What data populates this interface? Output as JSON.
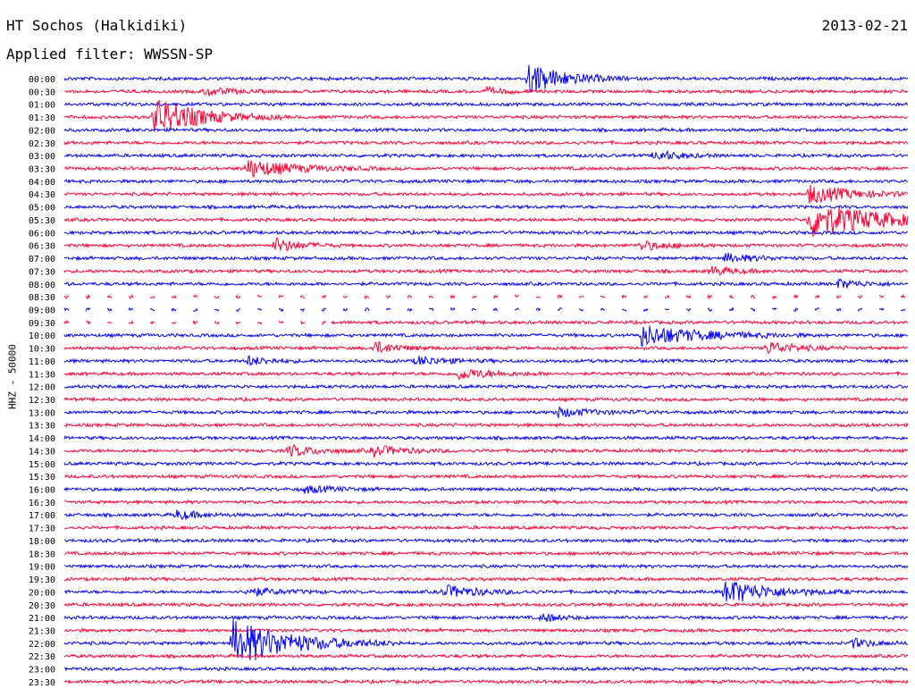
{
  "header": {
    "station": "HT Sochos (Halkidiki)",
    "date": "2013-02-21",
    "filter": "Applied filter: WWSSN-SP"
  },
  "colors": {
    "odd_trace": "#0000ff",
    "even_trace": "#ff0033",
    "text": "#000000"
  },
  "chart_data": {
    "type": "line",
    "title": "HT Sochos (Halkidiki)",
    "ylabel": "HHZ - 50000",
    "xlabel": "",
    "grid": false,
    "series_labels": [
      "00:00",
      "00:30",
      "01:00",
      "01:30",
      "02:00",
      "02:30",
      "03:00",
      "03:30",
      "04:00",
      "04:30",
      "05:00",
      "05:30",
      "06:00",
      "06:30",
      "07:00",
      "07:30",
      "08:00",
      "08:30",
      "09:00",
      "09:30",
      "10:00",
      "10:30",
      "11:00",
      "11:30",
      "12:00",
      "12:30",
      "13:00",
      "13:30",
      "14:00",
      "14:30",
      "15:00",
      "15:30",
      "16:00",
      "16:30",
      "17:00",
      "17:30",
      "18:00",
      "18:30",
      "19:00",
      "19:30",
      "20:00",
      "20:30",
      "21:00",
      "21:30",
      "22:00",
      "22:30",
      "23:00",
      "23:30"
    ],
    "events": [
      {
        "row": "00:00",
        "minute": 16.5,
        "amplitude": 18,
        "duration_min": 1.2
      },
      {
        "row": "00:30",
        "minute": 5.0,
        "amplitude": 5,
        "duration_min": 0.8
      },
      {
        "row": "00:30",
        "minute": 15.0,
        "amplitude": 4,
        "duration_min": 0.6
      },
      {
        "row": "01:30",
        "minute": 3.2,
        "amplitude": 22,
        "duration_min": 1.5
      },
      {
        "row": "03:00",
        "minute": 21.0,
        "amplitude": 6,
        "duration_min": 0.8
      },
      {
        "row": "03:30",
        "minute": 6.5,
        "amplitude": 10,
        "duration_min": 1.6
      },
      {
        "row": "04:30",
        "minute": 26.5,
        "amplitude": 10,
        "duration_min": 1.5
      },
      {
        "row": "05:30",
        "minute": 26.5,
        "amplitude": 20,
        "duration_min": 2.5
      },
      {
        "row": "06:30",
        "minute": 7.5,
        "amplitude": 8,
        "duration_min": 0.8
      },
      {
        "row": "06:30",
        "minute": 20.5,
        "amplitude": 5,
        "duration_min": 1.0
      },
      {
        "row": "07:00",
        "minute": 23.5,
        "amplitude": 5,
        "duration_min": 1.0
      },
      {
        "row": "07:30",
        "minute": 23.0,
        "amplitude": 5,
        "duration_min": 0.8
      },
      {
        "row": "08:00",
        "minute": 27.5,
        "amplitude": 5,
        "duration_min": 0.8
      },
      {
        "row": "10:00",
        "minute": 20.5,
        "amplitude": 12,
        "duration_min": 2.0
      },
      {
        "row": "10:30",
        "minute": 11.0,
        "amplitude": 7,
        "duration_min": 0.8
      },
      {
        "row": "10:30",
        "minute": 25.0,
        "amplitude": 7,
        "duration_min": 1.0
      },
      {
        "row": "11:00",
        "minute": 6.5,
        "amplitude": 5,
        "duration_min": 0.8
      },
      {
        "row": "11:00",
        "minute": 12.5,
        "amplitude": 5,
        "duration_min": 1.0
      },
      {
        "row": "11:30",
        "minute": 14.0,
        "amplitude": 6,
        "duration_min": 1.2
      },
      {
        "row": "13:00",
        "minute": 17.5,
        "amplitude": 5,
        "duration_min": 1.2
      },
      {
        "row": "14:30",
        "minute": 8.0,
        "amplitude": 6,
        "duration_min": 1.0
      },
      {
        "row": "14:30",
        "minute": 11.0,
        "amplitude": 6,
        "duration_min": 1.0
      },
      {
        "row": "16:00",
        "minute": 8.5,
        "amplitude": 4,
        "duration_min": 1.0
      },
      {
        "row": "17:00",
        "minute": 4.0,
        "amplitude": 5,
        "duration_min": 0.8
      },
      {
        "row": "20:00",
        "minute": 6.5,
        "amplitude": 5,
        "duration_min": 1.0
      },
      {
        "row": "20:00",
        "minute": 13.5,
        "amplitude": 7,
        "duration_min": 1.2
      },
      {
        "row": "20:00",
        "minute": 23.5,
        "amplitude": 14,
        "duration_min": 1.5
      },
      {
        "row": "21:00",
        "minute": 17.0,
        "amplitude": 5,
        "duration_min": 0.6
      },
      {
        "row": "22:00",
        "minute": 6.0,
        "amplitude": 26,
        "duration_min": 2.0
      },
      {
        "row": "22:00",
        "minute": 28.0,
        "amplitude": 5,
        "duration_min": 0.8
      }
    ],
    "gaps": [
      {
        "row": "08:30",
        "from_minute": 0,
        "to_minute": 30,
        "dashed": true
      },
      {
        "row": "09:00",
        "from_minute": 0,
        "to_minute": 30,
        "dashed": true
      },
      {
        "row": "09:30",
        "from_minute": 0,
        "to_minute": 9.5,
        "dashed": true
      }
    ]
  }
}
